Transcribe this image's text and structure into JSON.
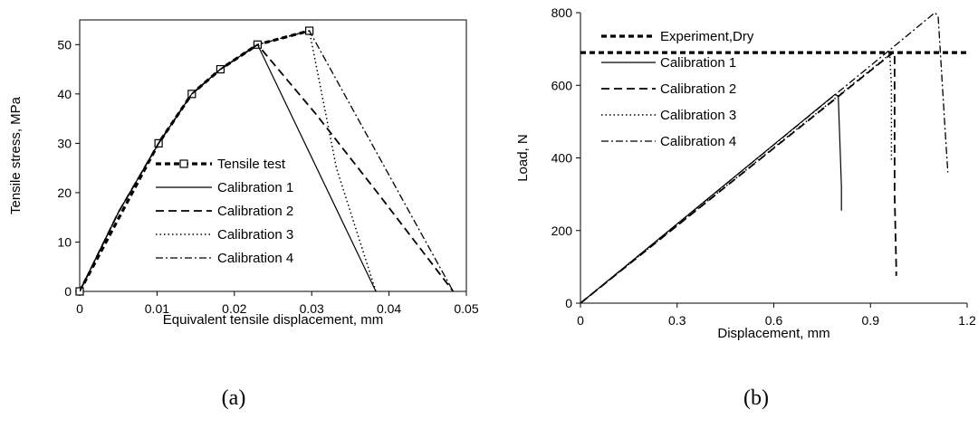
{
  "chart_data": [
    {
      "type": "line",
      "caption": "(a)",
      "xlabel": "Equivalent tensile displacement, mm",
      "ylabel": "Tensile stress, MPa",
      "xlim": [
        0,
        0.05
      ],
      "ylim": [
        0,
        55
      ],
      "xticks": [
        "0",
        "0.01",
        "0.02",
        "0.03",
        "0.04",
        "0.05"
      ],
      "yticks": [
        "0",
        "10",
        "20",
        "30",
        "40",
        "50"
      ],
      "legend_position": "center-right",
      "series": [
        {
          "name": "Tensile test",
          "style": "dotted-thick-square",
          "x": [
            0,
            0.0102,
            0.0145,
            0.0182,
            0.023,
            0.0297
          ],
          "y": [
            0,
            30,
            40,
            45,
            50,
            52.8
          ]
        },
        {
          "name": "Calibration 1",
          "style": "solid",
          "x": [
            0,
            0.005,
            0.0102,
            0.0145,
            0.0182,
            0.023,
            0.0383
          ],
          "y": [
            0,
            16,
            30,
            40,
            45,
            50,
            0
          ]
        },
        {
          "name": "Calibration 2",
          "style": "dashed",
          "x": [
            0,
            0.005,
            0.0102,
            0.0145,
            0.0182,
            0.023,
            0.0305,
            0.0385,
            0.0483
          ],
          "y": [
            0,
            16,
            30,
            40,
            45,
            50,
            36,
            20,
            0
          ]
        },
        {
          "name": "Calibration 3",
          "style": "dotted",
          "x": [
            0,
            0.005,
            0.0102,
            0.0145,
            0.0182,
            0.023,
            0.0297,
            0.0332,
            0.0383
          ],
          "y": [
            0,
            16,
            30,
            40,
            45,
            50,
            52.8,
            25,
            0
          ]
        },
        {
          "name": "Calibration 4",
          "style": "dashdot",
          "x": [
            0,
            0.005,
            0.0102,
            0.0145,
            0.0182,
            0.023,
            0.0297,
            0.0483
          ],
          "y": [
            0,
            16,
            30,
            40,
            45,
            50,
            52.8,
            0
          ]
        }
      ]
    },
    {
      "type": "line",
      "caption": "(b)",
      "xlabel": "Displacement, mm",
      "ylabel": "Load, N",
      "xlim": [
        0,
        1.2
      ],
      "ylim": [
        0,
        800
      ],
      "xticks": [
        "0",
        "0.3",
        "0.6",
        "0.9",
        "1.2"
      ],
      "yticks": [
        "0",
        "200",
        "400",
        "600",
        "800"
      ],
      "legend_position": "top-left",
      "series": [
        {
          "name": "Experiment,Dry",
          "style": "dotted-thick",
          "x": [
            0,
            1.2
          ],
          "y": [
            690,
            690
          ]
        },
        {
          "name": "Calibration 1",
          "style": "solid",
          "x": [
            0,
            0.79,
            0.8,
            0.805,
            0.81,
            0.81
          ],
          "y": [
            0,
            575,
            570,
            450,
            320,
            255
          ]
        },
        {
          "name": "Calibration 2",
          "style": "dashed",
          "x": [
            0,
            0.97,
            0.975,
            0.975,
            0.98,
            0.98
          ],
          "y": [
            0,
            690,
            690,
            300,
            100,
            75
          ]
        },
        {
          "name": "Calibration 3",
          "style": "dotted",
          "x": [
            0,
            0.96,
            0.965,
            0.965
          ],
          "y": [
            0,
            685,
            600,
            395
          ]
        },
        {
          "name": "Calibration 4",
          "style": "dashdot",
          "x": [
            0,
            0.95,
            1.1,
            1.11,
            1.13,
            1.14
          ],
          "y": [
            0,
            690,
            800,
            790,
            500,
            360
          ]
        }
      ]
    }
  ]
}
